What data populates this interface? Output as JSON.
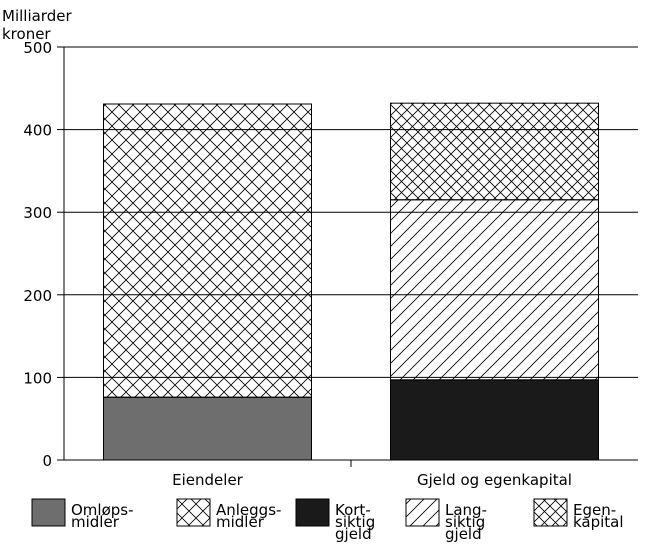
{
  "chart_data": {
    "type": "bar",
    "stacked": true,
    "ylabel": "Milliarder kroner",
    "ylabel_lines": [
      "Milliarder",
      "kroner"
    ],
    "ylim": [
      0,
      500
    ],
    "yticks": [
      "0",
      "100",
      "200",
      "300",
      "400",
      "500"
    ],
    "grid": true,
    "categories": [
      "Eiendeler",
      "Gjeld og egenkapital"
    ],
    "series": [
      {
        "name": "Omløpsmidler",
        "legend_lines": [
          "Omløps-",
          "midler"
        ],
        "pattern": "solid-gray",
        "color": "#6e6e6e",
        "values": [
          76,
          0
        ]
      },
      {
        "name": "Anleggsmidler",
        "legend_lines": [
          "Anleggs-",
          "midler"
        ],
        "pattern": "crosshatch-wide",
        "color": "#000000",
        "values": [
          355,
          0
        ]
      },
      {
        "name": "Kortsiktig gjeld",
        "legend_lines": [
          "Kort-",
          "siktig",
          "gjeld"
        ],
        "pattern": "solid-black",
        "color": "#1a1a1a",
        "values": [
          0,
          97
        ]
      },
      {
        "name": "Langsiktig gjeld",
        "legend_lines": [
          "Lang-",
          "siktig",
          "gjeld"
        ],
        "pattern": "diagonal",
        "color": "#000000",
        "values": [
          0,
          218
        ]
      },
      {
        "name": "Egenkapital",
        "legend_lines": [
          "Egen-",
          "kapital"
        ],
        "pattern": "crosshatch-fine",
        "color": "#000000",
        "values": [
          0,
          117
        ]
      }
    ],
    "legend_position": "bottom"
  }
}
